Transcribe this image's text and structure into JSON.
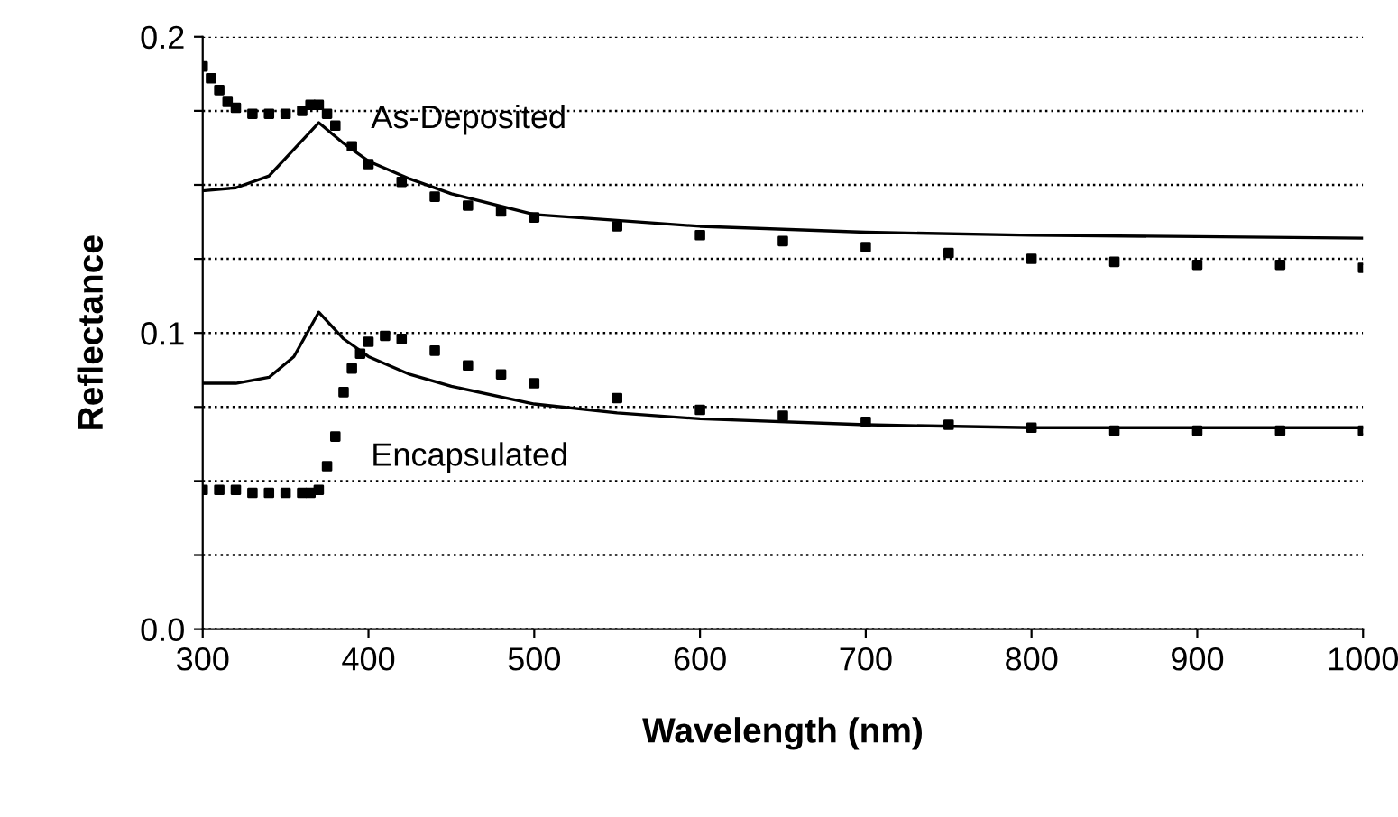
{
  "chart_data": {
    "type": "line",
    "xlabel": "Wavelength (nm)",
    "ylabel": "Reflectance",
    "xlim": [
      300,
      1000
    ],
    "xticks": [
      300,
      400,
      500,
      600,
      700,
      800,
      900,
      1000
    ],
    "ylim": [
      0,
      0.2
    ],
    "yticks": [
      {
        "value": 0,
        "label": "0.0"
      },
      {
        "value": 0.025,
        "label": null
      },
      {
        "value": 0.05,
        "label": null
      },
      {
        "value": 0.075,
        "label": null
      },
      {
        "value": 0.1,
        "label": "0.1"
      },
      {
        "value": 0.125,
        "label": null
      },
      {
        "value": 0.15,
        "label": null
      },
      {
        "value": 0.175,
        "label": null
      },
      {
        "value": 0.2,
        "label": "0.2"
      }
    ],
    "grid": "y",
    "line_style": "solid",
    "series": [
      {
        "type": "scatter",
        "marker": "square",
        "color": "#000000",
        "x": [
          300,
          305,
          310,
          315,
          320,
          330,
          340,
          350,
          360,
          365,
          370,
          375,
          380,
          390,
          400,
          420,
          440,
          460,
          480,
          500,
          550,
          600,
          650,
          700,
          750,
          800,
          850,
          900,
          950,
          1000
        ],
        "values": [
          0.19,
          0.186,
          0.182,
          0.178,
          0.176,
          0.174,
          0.174,
          0.174,
          0.175,
          0.177,
          0.177,
          0.174,
          0.17,
          0.163,
          0.157,
          0.151,
          0.146,
          0.143,
          0.141,
          0.139,
          0.136,
          0.133,
          0.131,
          0.129,
          0.127,
          0.125,
          0.124,
          0.123,
          0.123,
          0.122
        ]
      },
      {
        "color": "#000000",
        "x": [
          300,
          320,
          340,
          355,
          370,
          385,
          400,
          425,
          450,
          500,
          550,
          600,
          700,
          800,
          900,
          1000
        ],
        "values": [
          0.148,
          0.149,
          0.153,
          0.162,
          0.171,
          0.164,
          0.158,
          0.152,
          0.147,
          0.14,
          0.138,
          0.136,
          0.134,
          0.133,
          0.1325,
          0.132
        ]
      },
      {
        "type": "scatter",
        "marker": "square",
        "color": "#000000",
        "x": [
          300,
          310,
          320,
          330,
          340,
          350,
          360,
          365,
          370,
          375,
          380,
          385,
          390,
          395,
          400,
          410,
          420,
          440,
          460,
          480,
          500,
          550,
          600,
          650,
          700,
          750,
          800,
          850,
          900,
          950,
          1000
        ],
        "values": [
          0.047,
          0.047,
          0.047,
          0.046,
          0.046,
          0.046,
          0.046,
          0.046,
          0.047,
          0.055,
          0.065,
          0.08,
          0.088,
          0.093,
          0.097,
          0.099,
          0.098,
          0.094,
          0.089,
          0.086,
          0.083,
          0.078,
          0.074,
          0.072,
          0.07,
          0.069,
          0.068,
          0.067,
          0.067,
          0.067,
          0.067
        ]
      },
      {
        "color": "#000000",
        "x": [
          300,
          320,
          340,
          355,
          370,
          385,
          400,
          425,
          450,
          500,
          550,
          600,
          700,
          800,
          900,
          1000
        ],
        "values": [
          0.083,
          0.083,
          0.085,
          0.092,
          0.107,
          0.098,
          0.092,
          0.086,
          0.082,
          0.076,
          0.073,
          0.071,
          0.069,
          0.068,
          0.068,
          0.068
        ]
      }
    ],
    "annotations": [
      "As-Deposited",
      "Encapsulated"
    ]
  }
}
